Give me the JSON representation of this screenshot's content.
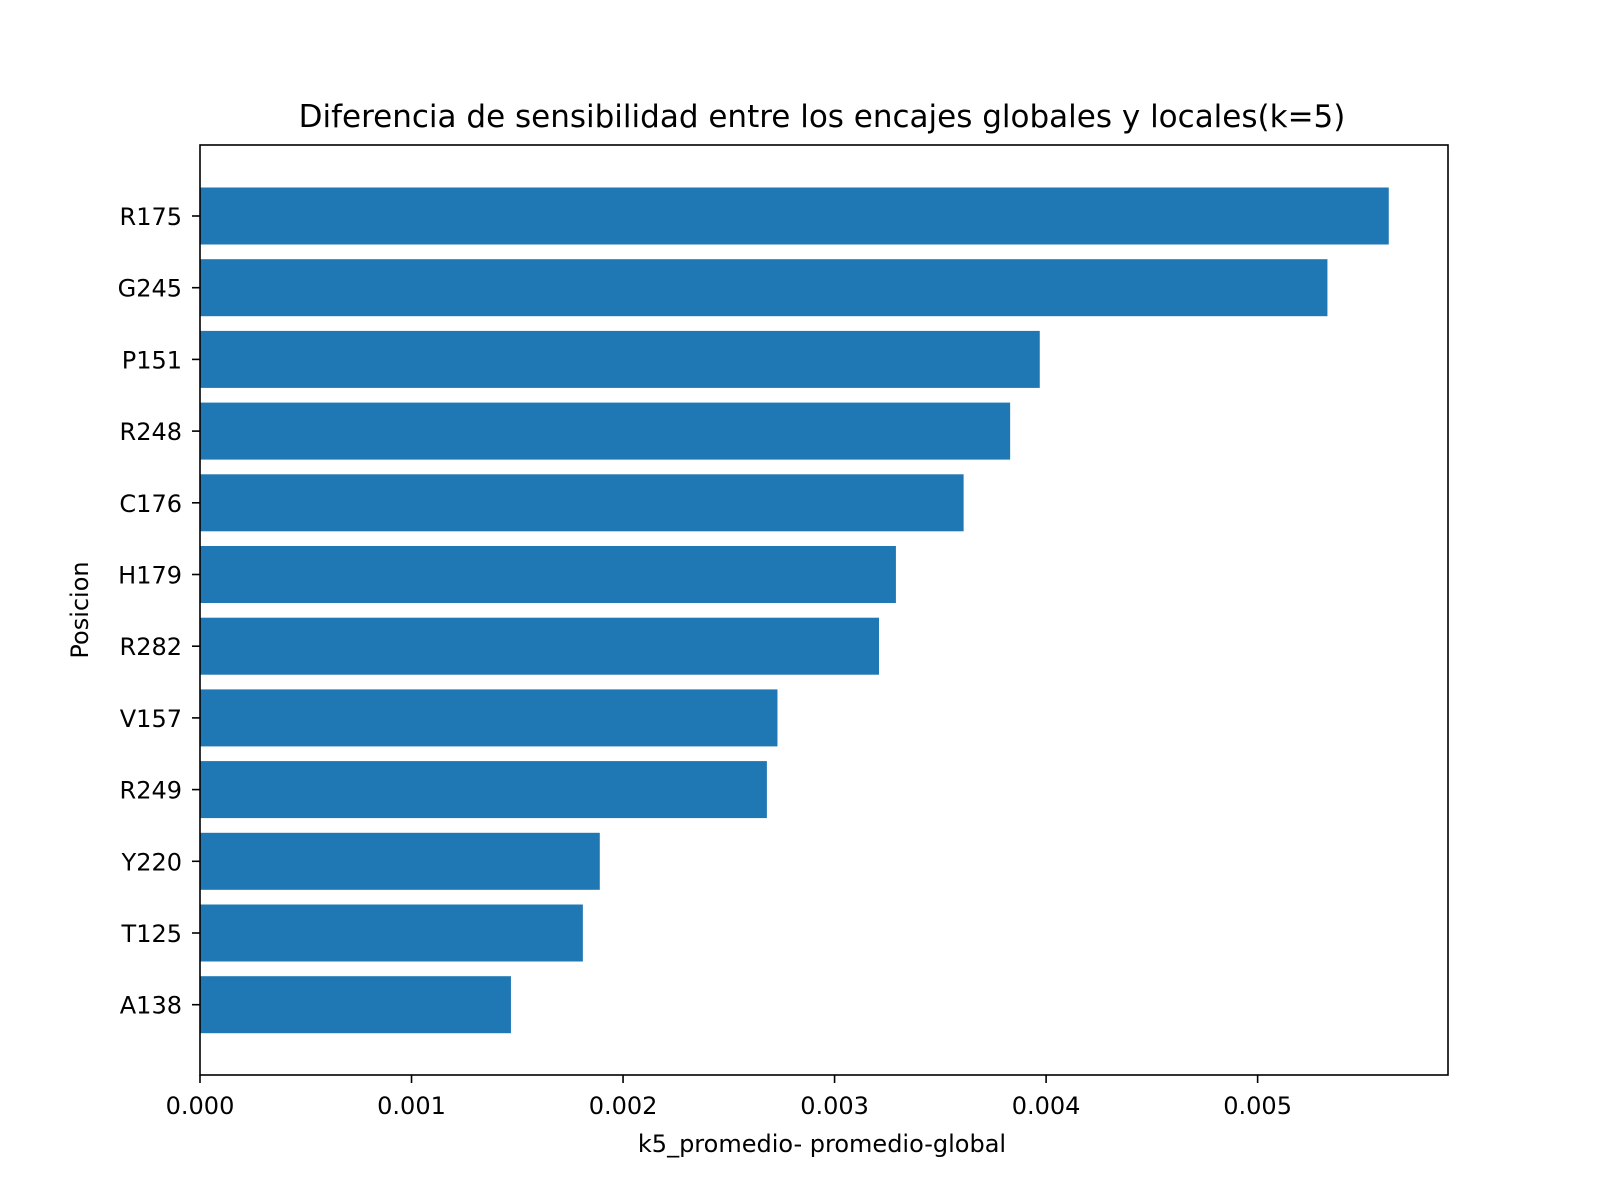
{
  "chart_data": {
    "type": "bar",
    "orientation": "horizontal",
    "title": "Diferencia de sensibilidad entre los encajes globales y locales(k=5)",
    "xlabel": "k5_promedio- promedio-global",
    "ylabel": "Posicion",
    "categories": [
      "R175",
      "G245",
      "P151",
      "R248",
      "C176",
      "H179",
      "R282",
      "V157",
      "R249",
      "Y220",
      "T125",
      "A138"
    ],
    "values": [
      0.00562,
      0.00533,
      0.00397,
      0.00383,
      0.00361,
      0.00329,
      0.00321,
      0.00273,
      0.00268,
      0.00189,
      0.00181,
      0.00147
    ],
    "xticks": [
      0.0,
      0.001,
      0.002,
      0.003,
      0.004,
      0.005
    ],
    "xtick_labels": [
      "0.000",
      "0.001",
      "0.002",
      "0.003",
      "0.004",
      "0.005"
    ],
    "xlim": [
      0,
      0.0059
    ],
    "bar_color": "#1f77b4",
    "grid": false,
    "legend": "none"
  }
}
